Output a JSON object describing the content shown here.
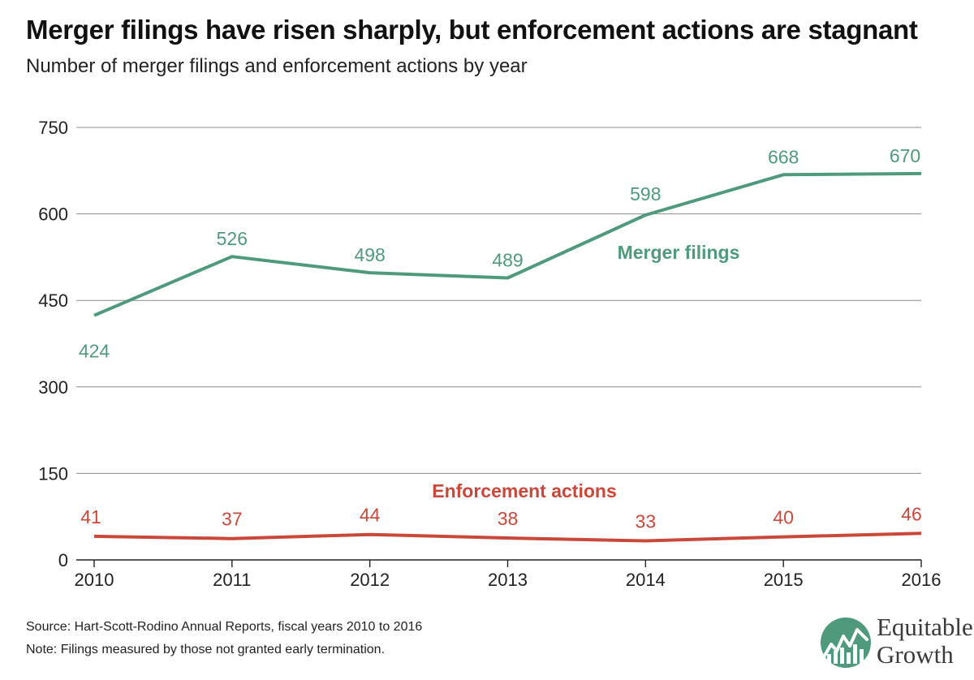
{
  "colors": {
    "merger": "#4f9a7c",
    "enforcement": "#c9483a",
    "grid": "#8c8c8c",
    "axis": "#222222"
  },
  "chart_data": {
    "type": "line",
    "title": "Merger filings have risen sharply, but enforcement actions are stagnant",
    "subtitle": "Number of merger filings and enforcement actions by year",
    "x": [
      "2010",
      "2011",
      "2012",
      "2013",
      "2014",
      "2015",
      "2016"
    ],
    "ylim": [
      0,
      750
    ],
    "yticks": [
      "0",
      "150",
      "300",
      "450",
      "600",
      "750"
    ],
    "grid": true,
    "legend": "inline labels",
    "series": [
      {
        "name": "Merger filings",
        "values": [
          424,
          526,
          498,
          489,
          598,
          668,
          670
        ]
      },
      {
        "name": "Enforcement actions",
        "values": [
          41,
          37,
          44,
          38,
          33,
          40,
          46
        ]
      }
    ]
  },
  "footnotes": {
    "source": "Source: Hart-Scott-Rodino Annual Reports, fiscal years 2010 to 2016",
    "note": "Note: Filings measured by those not granted early termination."
  },
  "logo": {
    "line1": "Equitable",
    "line2": "Growth",
    "icon": "equitable-growth-chart-icon"
  }
}
